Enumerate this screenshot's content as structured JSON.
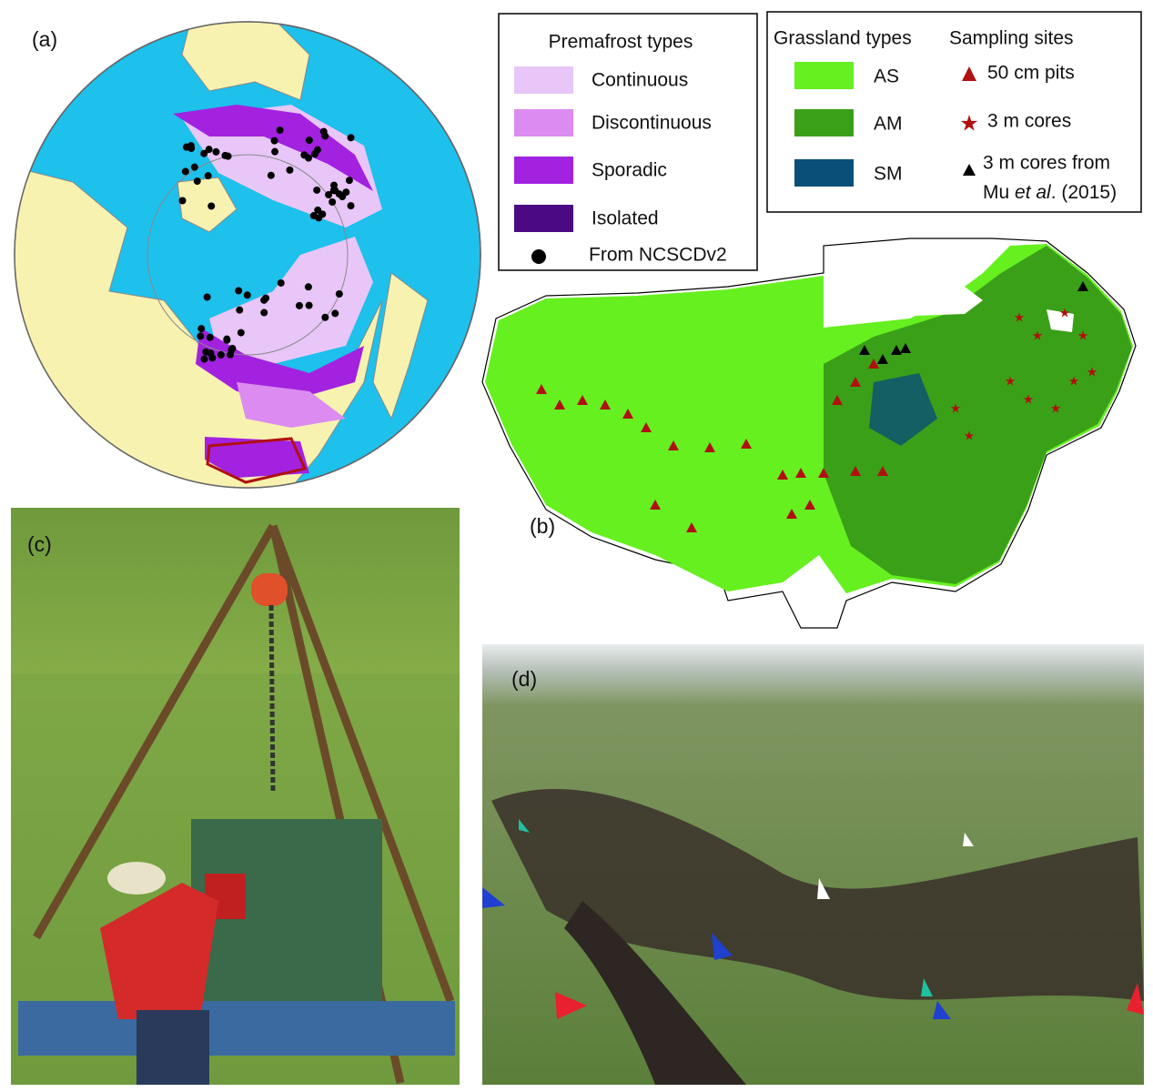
{
  "panels": {
    "a": "(a)",
    "b": "(b)",
    "c": "(c)",
    "d": "(d)"
  },
  "permafrost_legend": {
    "title": "Premafrost types",
    "items": [
      {
        "label": "Continuous",
        "color": "#e8c6f8"
      },
      {
        "label": "Discontinuous",
        "color": "#dc8cf0"
      },
      {
        "label": "Sporadic",
        "color": "#a222e0"
      },
      {
        "label": "Isolated",
        "color": "#4b0a82"
      }
    ],
    "dots": "From NCSCDv2"
  },
  "grassland_legend": {
    "title": "Grassland types",
    "items": [
      {
        "label": "AS",
        "color": "#66f020"
      },
      {
        "label": "AM",
        "color": "#3aa018"
      },
      {
        "label": "SM",
        "color": "#0a4f78"
      }
    ]
  },
  "sampling_legend": {
    "title": "Sampling sites",
    "items": [
      "50 cm pits",
      "3 m cores"
    ],
    "third": {
      "line1": "3 m cores from",
      "line2": [
        "Mu ",
        "et al",
        ". (2015)"
      ]
    }
  }
}
